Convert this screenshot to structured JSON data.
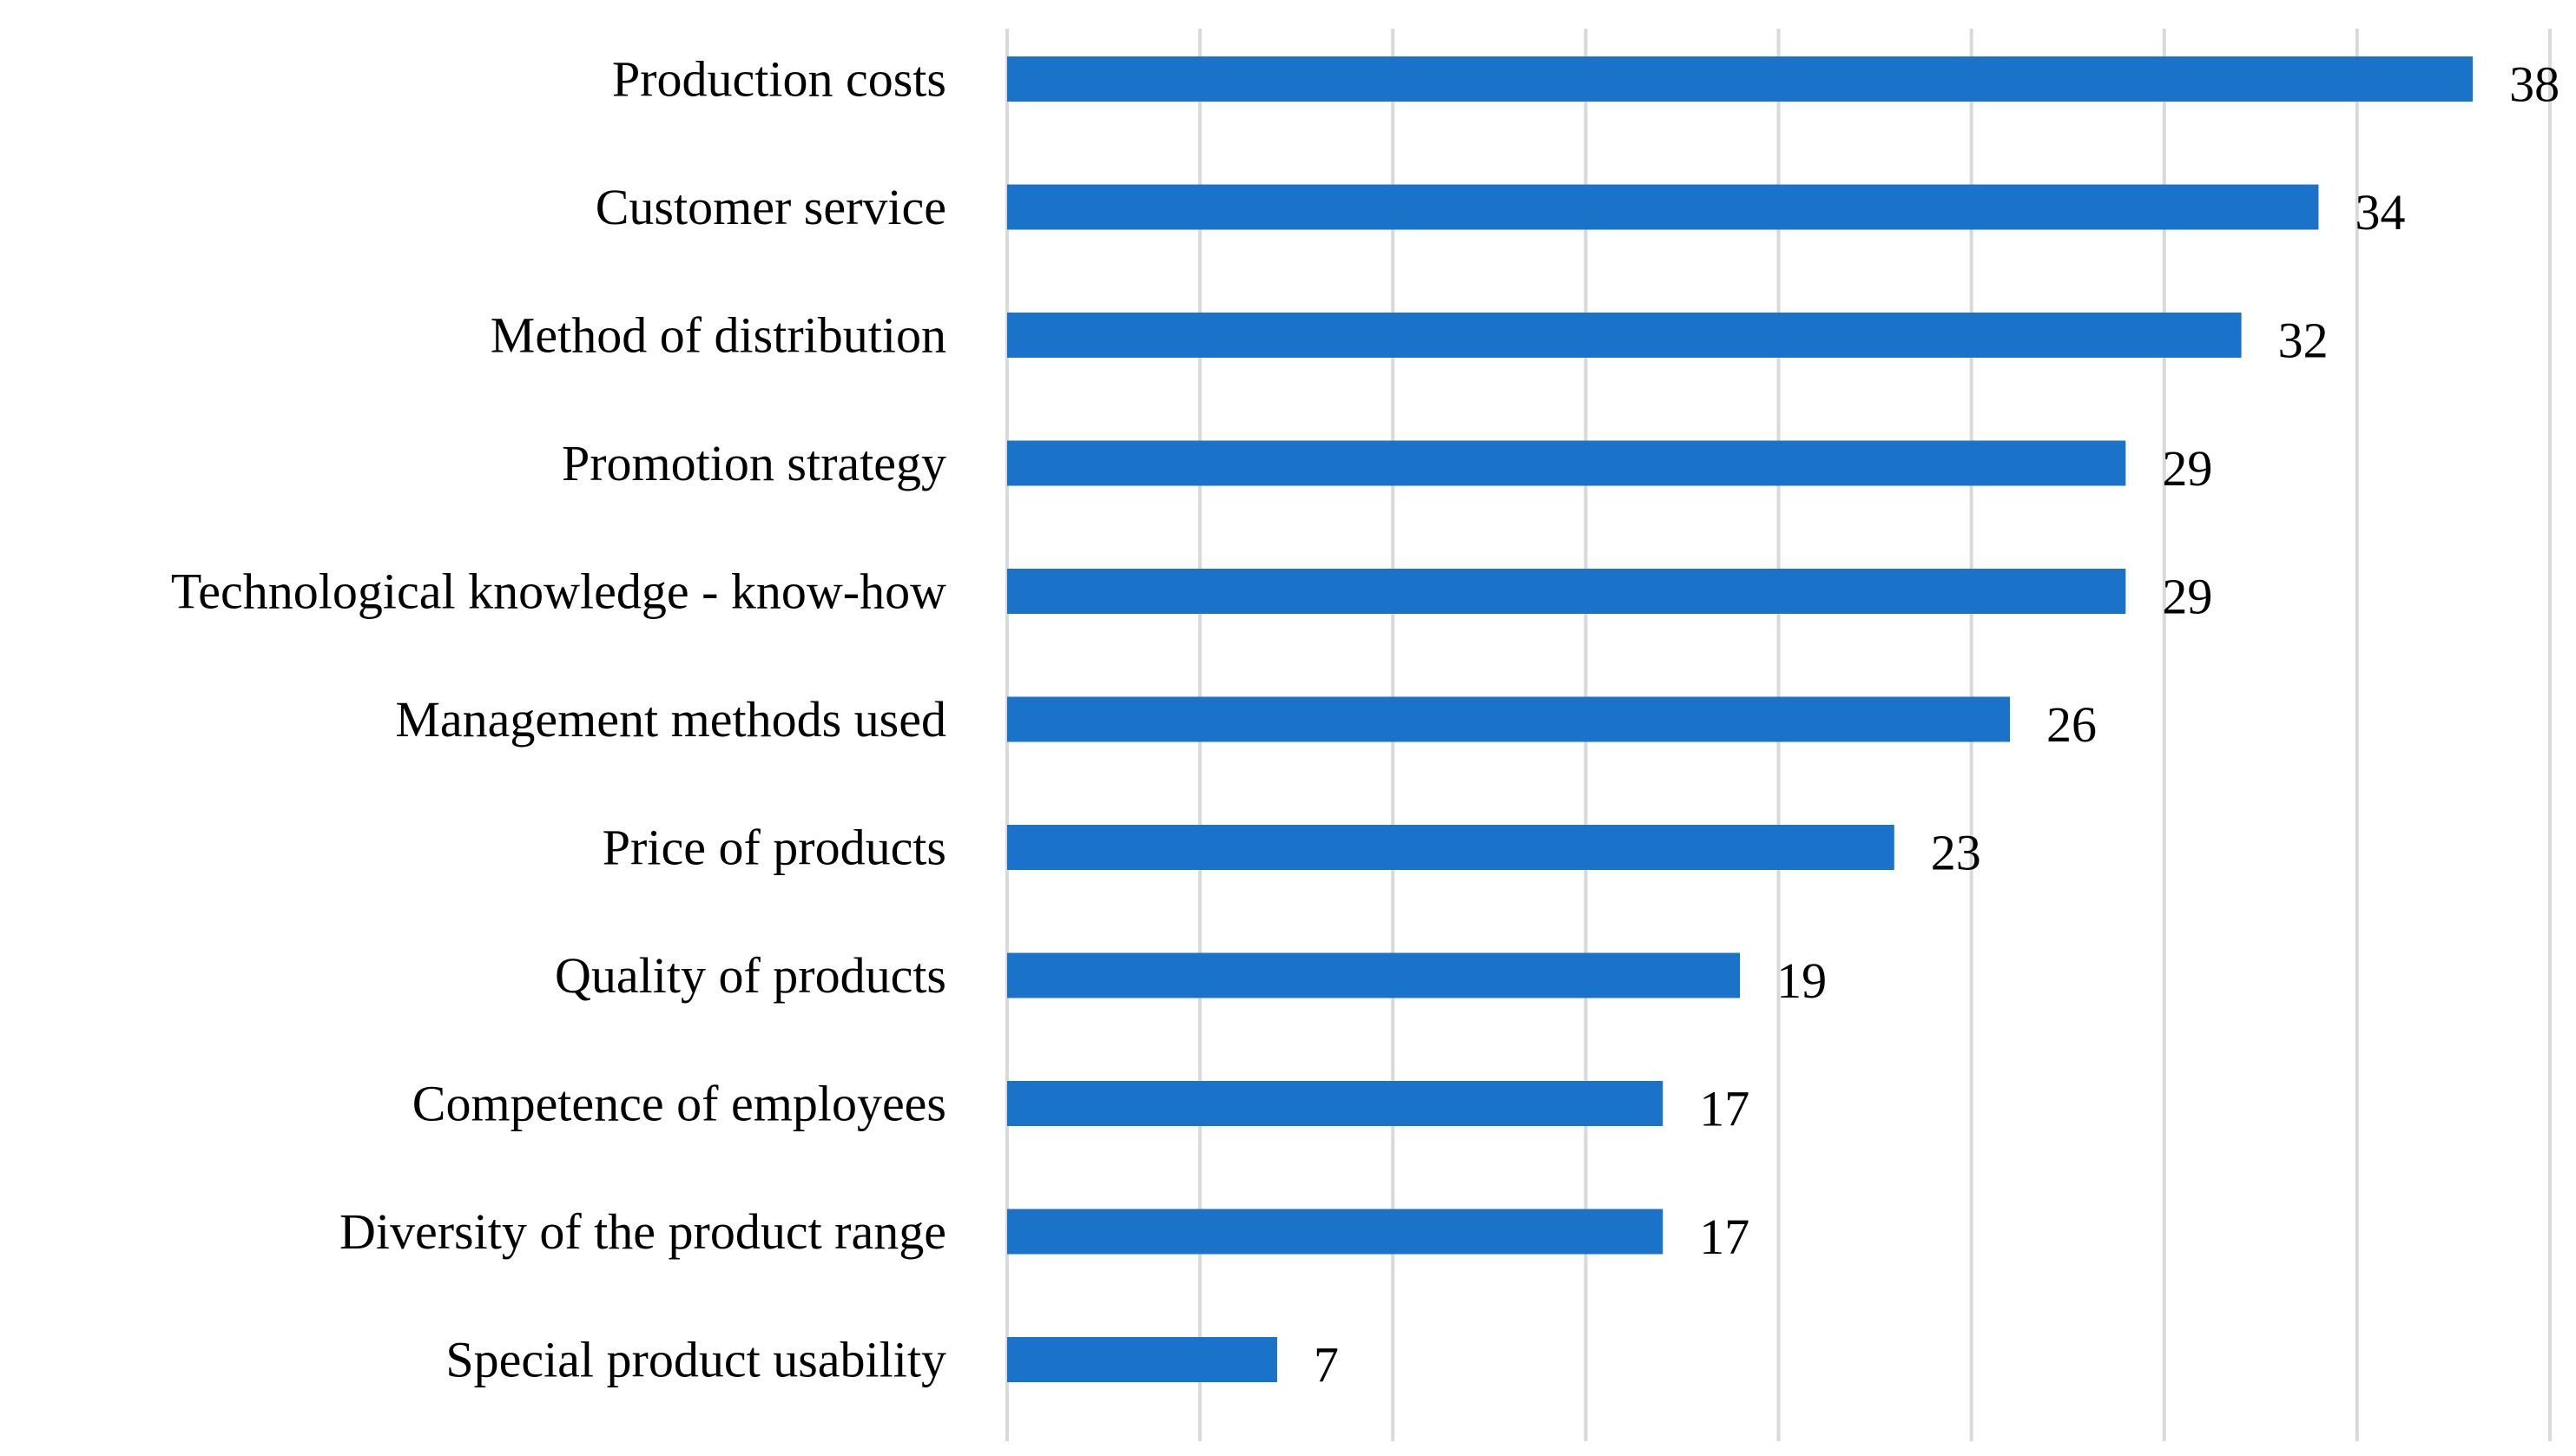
{
  "chart_data": {
    "type": "bar",
    "orientation": "horizontal",
    "title": "",
    "xlabel": "",
    "ylabel": "",
    "categories": [
      "Production costs",
      "Customer service",
      "Method of distribution",
      "Promotion strategy",
      "Technological knowledge - know-how",
      "Management methods used",
      "Price of products",
      "Quality of products",
      "Competence of employees",
      "Diversity of the product range",
      "Special product usability"
    ],
    "values": [
      38,
      34,
      32,
      29,
      29,
      26,
      23,
      19,
      17,
      17,
      7
    ],
    "xlim": [
      0,
      40
    ],
    "gridline_step": 5,
    "grid": true,
    "legend": "none",
    "bar_color": "#1a73c9",
    "grid_color": "#d9d9d9"
  }
}
